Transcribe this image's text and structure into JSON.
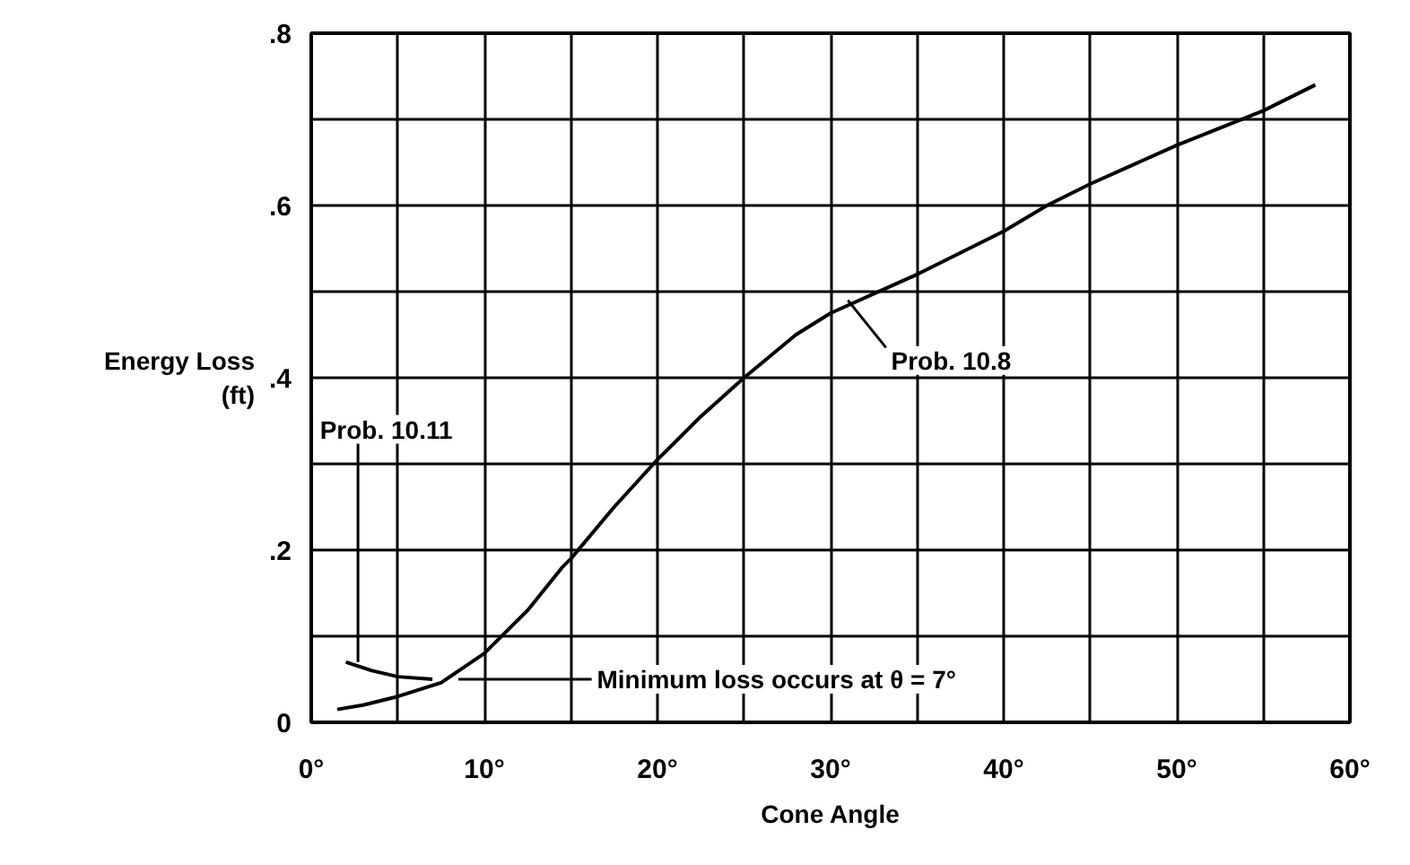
{
  "chart_data": {
    "type": "line",
    "xlabel": "Cone Angle",
    "ylabel": "Energy Loss\n(ft)",
    "series": [
      {
        "color": "#000000",
        "x": [
          1.5,
          3,
          5,
          7.5,
          10,
          12.5,
          14.5,
          15,
          17.5,
          20,
          22.5,
          25,
          28,
          30,
          35,
          40,
          42.5,
          45,
          50,
          55,
          58
        ],
        "values": [
          0.015,
          0.02,
          0.03,
          0.046,
          0.08,
          0.13,
          0.18,
          0.19,
          0.25,
          0.305,
          0.355,
          0.4,
          0.45,
          0.475,
          0.52,
          0.57,
          0.6,
          0.625,
          0.67,
          0.71,
          0.74
        ]
      },
      {
        "color": "#000000",
        "x": [
          2,
          3.5,
          5,
          7
        ],
        "values": [
          0.07,
          0.06,
          0.053,
          0.05
        ]
      }
    ],
    "xlim": [
      0,
      60
    ],
    "ylim": [
      0,
      0.8
    ],
    "xticks": [
      {
        "value": 0,
        "label": "0°"
      },
      {
        "value": 5,
        "label": null
      },
      {
        "value": 10,
        "label": "10°"
      },
      {
        "value": 15,
        "label": null
      },
      {
        "value": 20,
        "label": "20°"
      },
      {
        "value": 25,
        "label": null
      },
      {
        "value": 30,
        "label": "30°"
      },
      {
        "value": 35,
        "label": null
      },
      {
        "value": 40,
        "label": "40°"
      },
      {
        "value": 45,
        "label": null
      },
      {
        "value": 50,
        "label": "50°"
      },
      {
        "value": 55,
        "label": null
      },
      {
        "value": 60,
        "label": "60°"
      }
    ],
    "yticks": [
      {
        "value": 0,
        "label": "0"
      },
      {
        "value": 0.1,
        "label": null
      },
      {
        "value": 0.2,
        "label": ".2"
      },
      {
        "value": 0.3,
        "label": null
      },
      {
        "value": 0.4,
        "label": ".4"
      },
      {
        "value": 0.5,
        "label": null
      },
      {
        "value": 0.6,
        "label": ".6"
      },
      {
        "value": 0.7,
        "label": null
      },
      {
        "value": 0.8,
        "label": ".8"
      }
    ],
    "grid": true,
    "marker": "none",
    "line_style": "solid",
    "annotations": [
      {
        "text": "Prob. 10.11",
        "x": 2,
        "y": 0.07
      },
      {
        "text": "Prob. 10.8",
        "x": 31,
        "y": 0.49
      },
      {
        "text": "Minimum loss occurs at θ = 7°",
        "x": 8.5,
        "y": 0.05
      }
    ]
  }
}
